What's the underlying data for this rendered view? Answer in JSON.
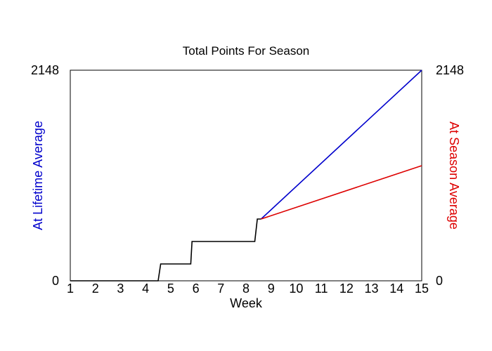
{
  "chart_data": {
    "type": "line",
    "title": "Total Points For Season",
    "xlabel": "Week",
    "ylabel_left": "At Lifetime Average",
    "ylabel_right": "At Season Average",
    "xlim": [
      1,
      15
    ],
    "ylim": [
      0,
      2148
    ],
    "x_ticks": [
      "1",
      "2",
      "3",
      "4",
      "5",
      "6",
      "7",
      "8",
      "9",
      "10",
      "11",
      "12",
      "13",
      "14",
      "15"
    ],
    "y_left_ticks": [
      "0",
      "2148"
    ],
    "y_right_ticks": [
      "0",
      "2148"
    ],
    "grid": false,
    "legend": "none",
    "colors": {
      "actual": "#000000",
      "lifetime": "#0000cc",
      "season": "#dd0000"
    },
    "series": [
      {
        "role": "actual",
        "x": [
          1,
          4.5,
          4.6,
          5.8,
          5.85,
          8.35,
          8.45,
          8.6
        ],
        "y": [
          0,
          0,
          172,
          172,
          401,
          401,
          630,
          630
        ]
      },
      {
        "role": "lifetime",
        "x": [
          8.6,
          15
        ],
        "y": [
          630,
          2148
        ]
      },
      {
        "role": "season",
        "x": [
          8.6,
          15
        ],
        "y": [
          630,
          1174
        ]
      }
    ]
  }
}
